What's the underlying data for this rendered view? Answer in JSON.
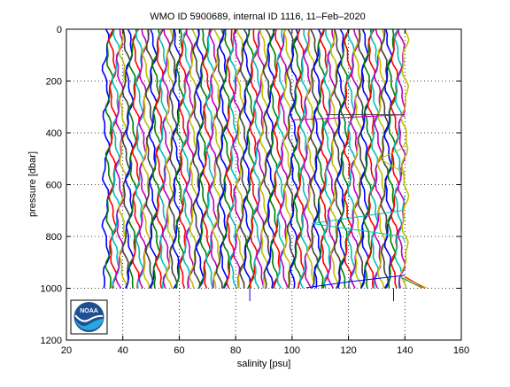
{
  "chart_data": {
    "type": "line",
    "title": "WMO ID 5900689, internal ID 1116, 11–Feb–2020",
    "xlabel": "salinity [psu]",
    "ylabel": "pressure [dbar]",
    "xlim": [
      20,
      160
    ],
    "ylim": [
      0,
      1200
    ],
    "y_reversed": true,
    "xticks": [
      20,
      40,
      60,
      80,
      100,
      120,
      140,
      160
    ],
    "yticks": [
      0,
      200,
      400,
      600,
      800,
      1000,
      1200
    ],
    "grid": "dotted",
    "legend": "none",
    "profile_colors": [
      "#0000ff",
      "#008000",
      "#ff0000",
      "#00bfbf",
      "#bf00bf",
      "#bfbf00",
      "#404040"
    ],
    "profile_range": {
      "x_start": 34,
      "x_end": 140,
      "count": 90,
      "p_top": 0,
      "p_bottom": 1000
    },
    "outlier_traces": [
      {
        "color": "#00bfbf",
        "points": [
          [
            140,
            640
          ],
          [
            139,
            700
          ],
          [
            107,
            750
          ],
          [
            139,
            800
          ],
          [
            140,
            820
          ]
        ]
      },
      {
        "color": "#bfbf00",
        "points": [
          [
            140,
            440
          ],
          [
            139,
            460
          ],
          [
            131,
            500
          ],
          [
            139,
            550
          ],
          [
            140,
            580
          ]
        ]
      },
      {
        "color": "#404040",
        "points": [
          [
            112,
            330
          ],
          [
            139,
            330
          ],
          [
            140,
            340
          ]
        ]
      },
      {
        "color": "#bf00bf",
        "points": [
          [
            140,
            330
          ],
          [
            112,
            345
          ],
          [
            100,
            350
          ]
        ]
      },
      {
        "color": "#0000ff",
        "points": [
          [
            140,
            950
          ],
          [
            120,
            975
          ],
          [
            105,
            998
          ]
        ]
      },
      {
        "color": "#bfbf00",
        "points": [
          [
            140,
            960
          ],
          [
            148,
            1000
          ]
        ]
      },
      {
        "color": "#ff0000",
        "points": [
          [
            140,
            955
          ],
          [
            147,
            1000
          ]
        ]
      },
      {
        "color": "#008000",
        "points": [
          [
            139,
            960
          ],
          [
            146,
            998
          ]
        ]
      }
    ],
    "spikes": [
      {
        "color": "#0000ff",
        "points": [
          [
            85,
            1000
          ],
          [
            85,
            1050
          ]
        ]
      },
      {
        "color": "#0000ff",
        "points": [
          [
            136,
            1000
          ],
          [
            136,
            1050
          ]
        ]
      }
    ]
  },
  "logo": {
    "text": "NOAA"
  }
}
